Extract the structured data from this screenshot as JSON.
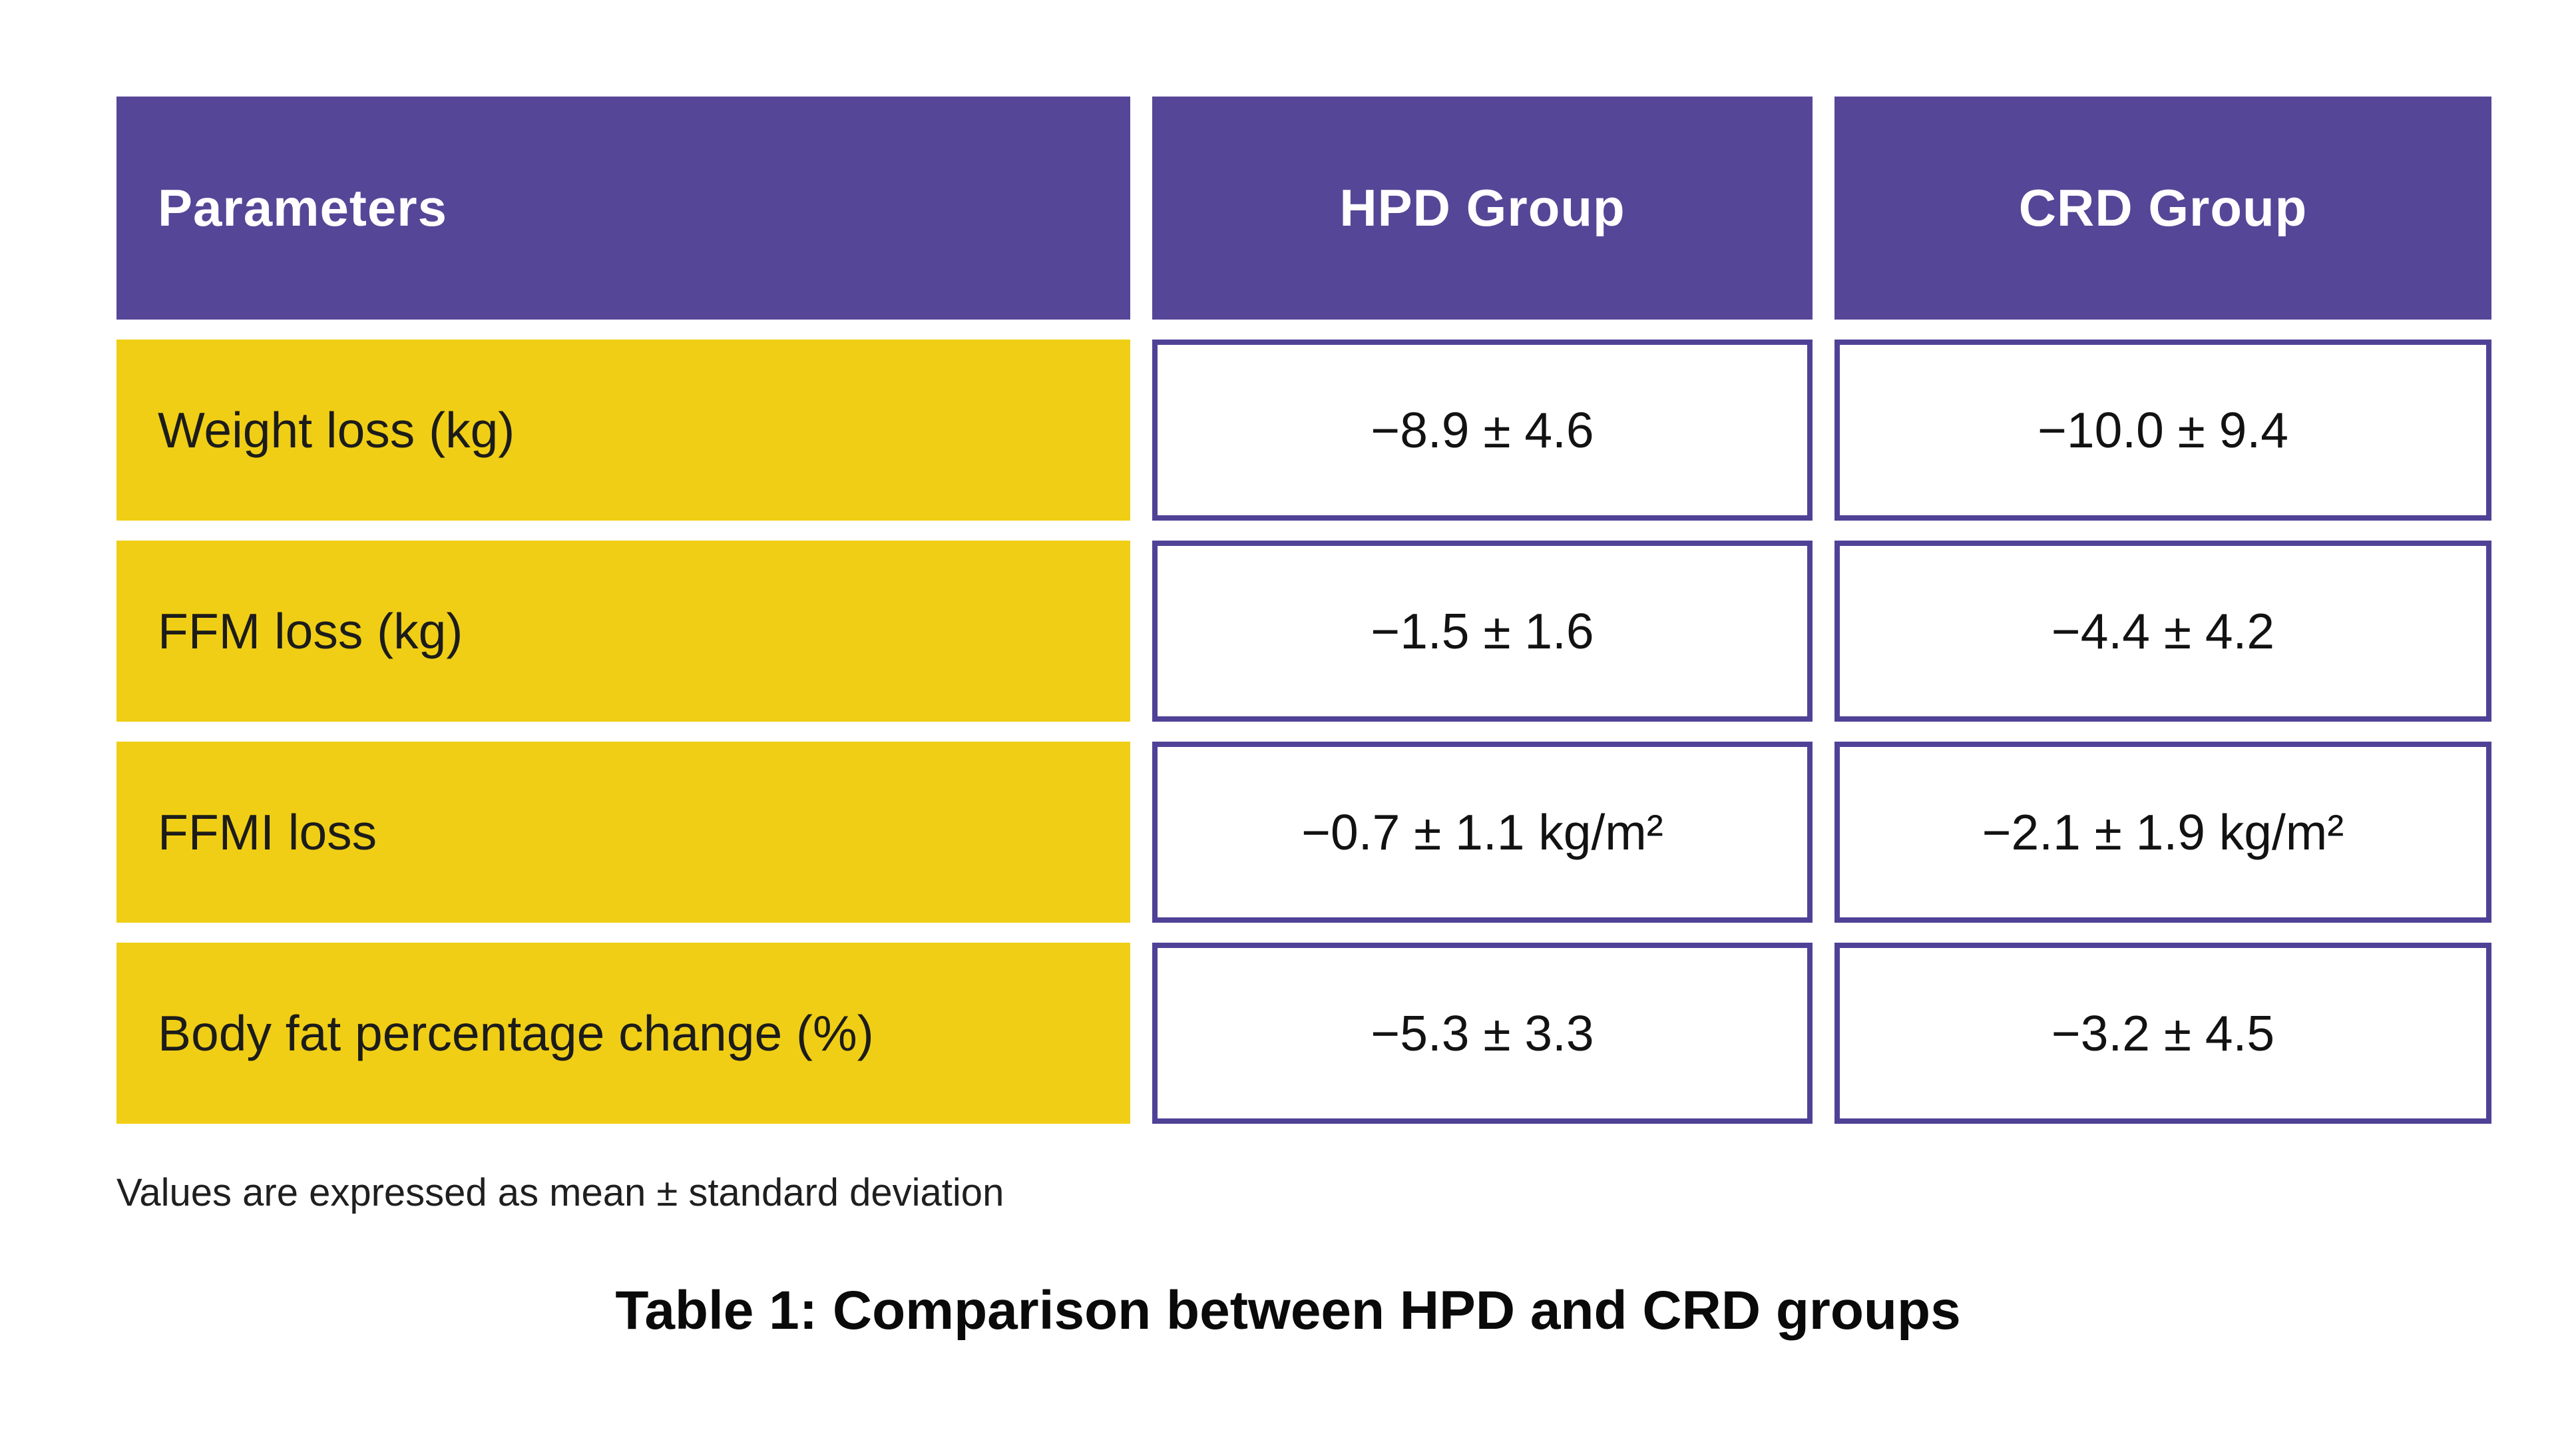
{
  "colors": {
    "header_purple": "#564697",
    "value_cell_border_purple": "#4f4296",
    "parameter_row_yellow": "#f0ce15",
    "header_text": "#ffffff",
    "body_text": "#121212"
  },
  "chart_data": {
    "type": "table",
    "title": "Table 1: Comparison between HPD and CRD groups",
    "columns": [
      "Parameters",
      "HPD Group",
      "CRD Group"
    ],
    "rows": [
      {
        "parameter": "Weight loss (kg)",
        "hpd": "−8.9 ± 4.6",
        "crd": "−10.0 ± 9.4",
        "hpd_mean": -8.9,
        "hpd_sd": 4.6,
        "crd_mean": -10.0,
        "crd_sd": 9.4
      },
      {
        "parameter": "FFM loss (kg)",
        "hpd": "−1.5 ± 1.6",
        "crd": "−4.4 ± 4.2",
        "hpd_mean": -1.5,
        "hpd_sd": 1.6,
        "crd_mean": -4.4,
        "crd_sd": 4.2
      },
      {
        "parameter": "FFMI loss",
        "hpd": "−0.7 ± 1.1 kg/m²",
        "crd": "−2.1 ± 1.9 kg/m²",
        "hpd_mean": -0.7,
        "hpd_sd": 1.1,
        "crd_mean": -2.1,
        "crd_sd": 1.9
      },
      {
        "parameter": "Body fat percentage change (%)",
        "hpd": "−5.3 ± 3.3",
        "crd": "−3.2 ± 4.5",
        "hpd_mean": -5.3,
        "hpd_sd": 3.3,
        "crd_mean": -3.2,
        "crd_sd": 4.5
      }
    ],
    "footnote": "Values are expressed as mean ± standard deviation"
  }
}
